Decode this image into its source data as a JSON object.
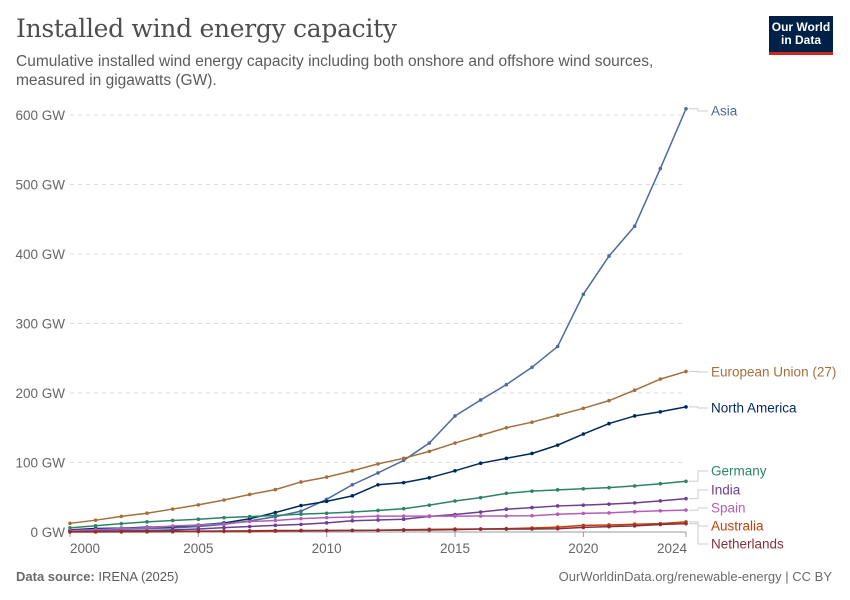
{
  "header": {
    "title": "Installed wind energy capacity",
    "subtitle": "Cumulative installed wind energy capacity including both onshore and offshore wind sources, measured in gigawatts (GW).",
    "logo_text": "Our World in Data"
  },
  "footer": {
    "source_label": "Data source:",
    "source_value": "IRENA (2025)",
    "url": "OurWorldinData.org/renewable-energy | CC BY"
  },
  "chart_data": {
    "type": "line",
    "title": "Installed wind energy capacity",
    "xlabel": "",
    "ylabel": "",
    "x": [
      2000,
      2001,
      2002,
      2003,
      2004,
      2005,
      2006,
      2007,
      2008,
      2009,
      2010,
      2011,
      2012,
      2013,
      2014,
      2015,
      2016,
      2017,
      2018,
      2019,
      2020,
      2021,
      2022,
      2023,
      2024
    ],
    "xlim": [
      2000,
      2024
    ],
    "ylim": [
      0,
      600
    ],
    "x_ticks": [
      "2000",
      "2005",
      "2010",
      "2015",
      "2020",
      "2024"
    ],
    "y_ticks": [
      {
        "value": 0,
        "label": "0 GW"
      },
      {
        "value": 100,
        "label": "100 GW"
      },
      {
        "value": 200,
        "label": "200 GW"
      },
      {
        "value": 300,
        "label": "300 GW"
      },
      {
        "value": 400,
        "label": "400 GW"
      },
      {
        "value": 500,
        "label": "500 GW"
      },
      {
        "value": 600,
        "label": "600 GW"
      }
    ],
    "grid": true,
    "legend_placement": "right (inline labels)",
    "series": [
      {
        "name": "Asia",
        "color": "#4c6a9c",
        "values": [
          2,
          3,
          4,
          5,
          6,
          8,
          11,
          16,
          22,
          30,
          47,
          68,
          85,
          103,
          128,
          167,
          190,
          212,
          237,
          267,
          342,
          397,
          440,
          523,
          609
        ]
      },
      {
        "name": "European Union (27)",
        "color": "#a2703d",
        "values": [
          12.5,
          17,
          22.5,
          27,
          33,
          39,
          46,
          54,
          61,
          72,
          79,
          88,
          98,
          106,
          116,
          128,
          139,
          150,
          158,
          168,
          178,
          189,
          204,
          220,
          231
        ]
      },
      {
        "name": "North America",
        "color": "#00295b",
        "values": [
          3,
          5,
          5.5,
          7,
          7.5,
          10,
          13,
          19,
          28,
          38,
          44,
          52,
          68,
          71,
          78,
          88,
          99,
          106,
          113,
          125,
          141,
          156,
          167,
          173,
          180
        ]
      },
      {
        "name": "Germany",
        "color": "#2c8465",
        "values": [
          6,
          9,
          12,
          14.6,
          16.6,
          18.4,
          20.6,
          22.2,
          23.8,
          25.7,
          26.9,
          28.7,
          31,
          33.5,
          38.6,
          44.6,
          49.4,
          55.6,
          58.8,
          60.7,
          62.2,
          63.8,
          66.3,
          69.5,
          73
        ]
      },
      {
        "name": "India",
        "color": "#6d3e91",
        "values": [
          1.2,
          1.5,
          1.7,
          2.1,
          3,
          4.4,
          6.3,
          7.9,
          9.6,
          10.9,
          13.2,
          16.1,
          17.3,
          18.4,
          22.5,
          25.1,
          28.7,
          32.8,
          35.1,
          37.5,
          38.6,
          40.1,
          41.9,
          44.7,
          48
        ]
      },
      {
        "name": "Spain",
        "color": "#b35fb8",
        "values": [
          2.2,
          3.4,
          5,
          6.2,
          8.6,
          10,
          11.7,
          15.1,
          16.6,
          19.2,
          20.7,
          21.5,
          22.8,
          22.9,
          22.9,
          22.9,
          23,
          23.1,
          23.4,
          25.6,
          26.8,
          27.5,
          29.3,
          30.5,
          31.5
        ]
      },
      {
        "name": "Australia",
        "color": "#c0400f",
        "values": [
          0.03,
          0.07,
          0.1,
          0.2,
          0.4,
          0.7,
          0.8,
          0.8,
          1.3,
          1.7,
          2,
          2.2,
          2.6,
          3.2,
          3.8,
          4.2,
          4.3,
          4.8,
          5.7,
          7.1,
          9.5,
          10.1,
          11.2,
          12,
          14.5
        ]
      },
      {
        "name": "Netherlands",
        "color": "#883039",
        "values": [
          0.4,
          0.5,
          0.7,
          0.9,
          1,
          1.2,
          1.5,
          1.7,
          2.1,
          2.2,
          2.2,
          2.3,
          2.4,
          2.7,
          2.9,
          3.4,
          4.2,
          4.2,
          4.4,
          4.6,
          6.6,
          7.8,
          8.8,
          10.8,
          12
        ]
      }
    ]
  }
}
